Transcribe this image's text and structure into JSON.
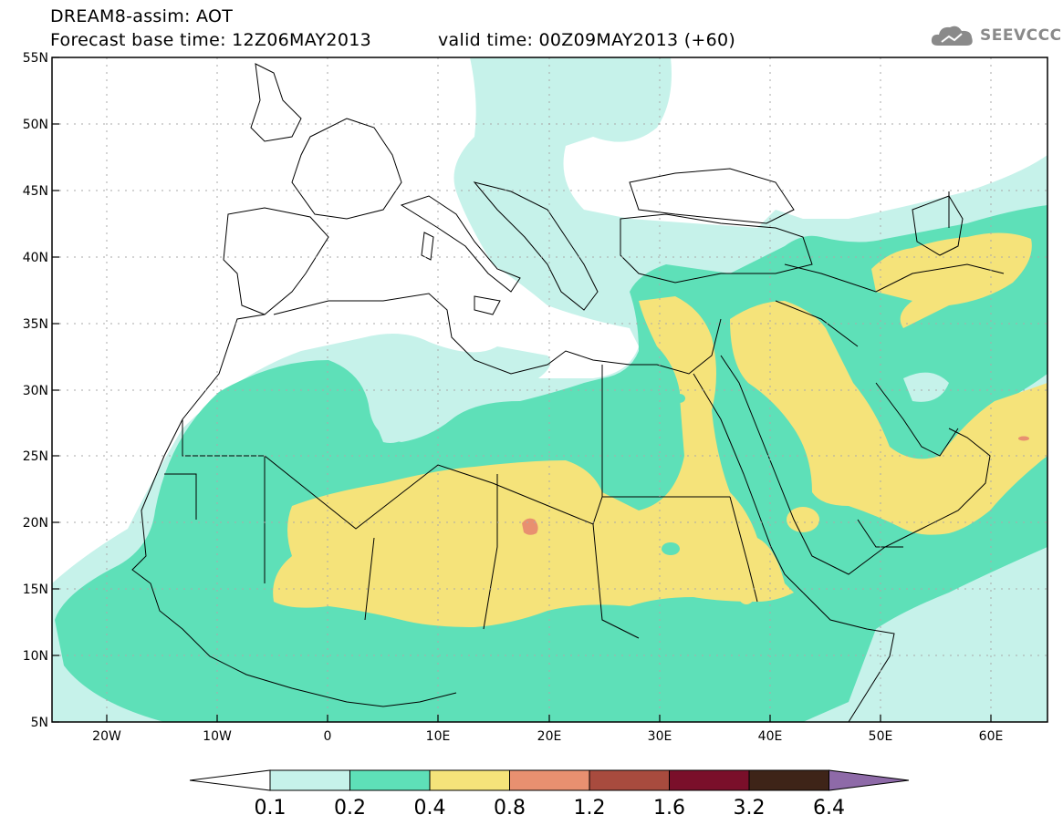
{
  "header": {
    "title_line1": "DREAM8-assim: AOT",
    "title_line2": "Forecast base time: 12Z06MAY2013",
    "valid_time": "valid time: 00Z09MAY2013 (+60)",
    "logo_text": "SEEVCCC"
  },
  "map": {
    "lat_labels": [
      "55N",
      "50N",
      "45N",
      "40N",
      "35N",
      "30N",
      "25N",
      "20N",
      "15N",
      "10N",
      "5N"
    ],
    "lon_labels": [
      "20W",
      "10W",
      "0",
      "10E",
      "20E",
      "30E",
      "40E",
      "50E",
      "60E"
    ],
    "lat_range": [
      5,
      55
    ],
    "lon_range": [
      -25,
      65
    ],
    "variable": "AOT"
  },
  "colorbar": {
    "labels": [
      "0.1",
      "0.2",
      "0.4",
      "0.8",
      "1.2",
      "1.6",
      "3.2",
      "6.4"
    ],
    "colors": {
      "below": "#ffffff",
      "c1": "#c6f2ea",
      "c2": "#5ee0b8",
      "c3": "#f5e37a",
      "c4": "#e89070",
      "c5": "#a84b3e",
      "c6": "#7a0f2a",
      "c7": "#3e2418",
      "above": "#8e6aa8"
    }
  }
}
